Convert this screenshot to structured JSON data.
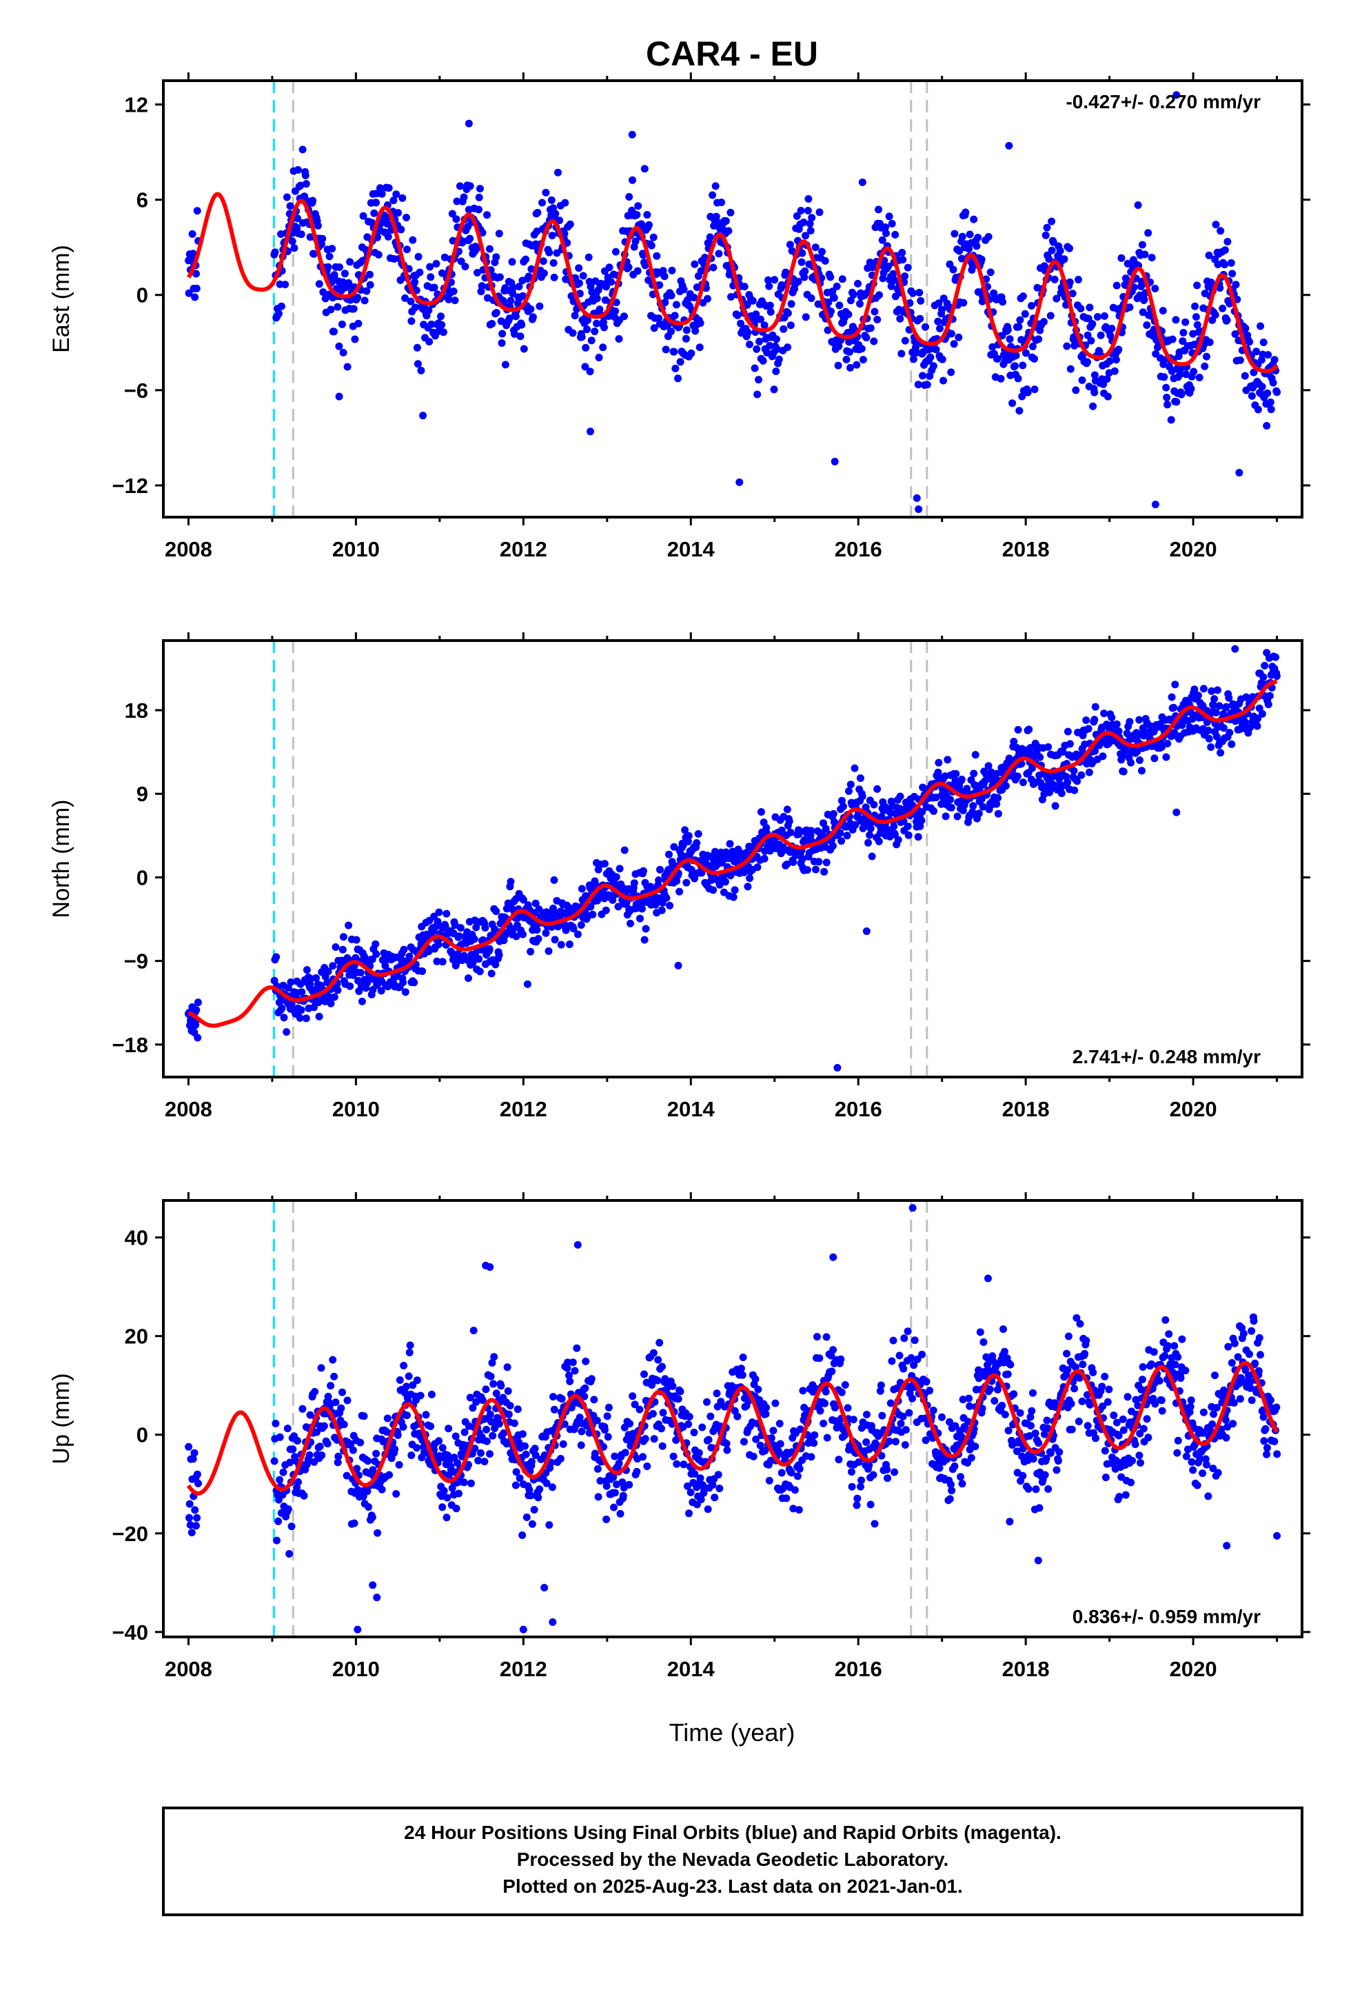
{
  "title": "CAR4 - EU",
  "xlabel": "Time (year)",
  "caption": {
    "line1": "24 Hour Positions Using Final Orbits (blue) and Rapid Orbits (magenta).",
    "line2": "Processed by the Nevada Geodetic Laboratory.",
    "line3": "Plotted on 2025-Aug-23. Last data on 2021-Jan-01."
  },
  "colors": {
    "final_orbits": "#0000ff",
    "model_fit": "#ff0000",
    "antenna_change": "#00e5ff",
    "equipment_change": "#c0c0c0"
  },
  "chart_data": [
    {
      "type": "scatter",
      "component": "east",
      "ylabel": "East (mm)",
      "rate": "-0.427+/- 0.270 mm/yr",
      "rate_position": "top-right",
      "xlim": [
        2007.7,
        2021.3
      ],
      "ylim": [
        -14,
        13.5
      ],
      "xticks": [
        2008,
        2010,
        2012,
        2014,
        2016,
        2018,
        2020
      ],
      "xtick_labels": [
        "2008",
        "2010",
        "2012",
        "2014",
        "2016",
        "2018",
        "2020"
      ],
      "yticks": [
        12,
        6,
        0,
        -6,
        -12
      ],
      "ytick_labels": [
        "12",
        "6",
        "0",
        "−6",
        "−12"
      ],
      "vlines_cyan": [
        2009.02
      ],
      "vlines_gray": [
        2009.25,
        2016.63,
        2016.82
      ],
      "data_span": [
        2008.0,
        2021.0
      ],
      "trend": {
        "value_at_2008": 3.0,
        "slope_mm_per_yr": -0.427
      },
      "seasonal": {
        "annual_amplitude": 2.9,
        "annual_peak_fraction_of_year": 0.35,
        "semiannual_amplitude": 0.6
      },
      "scatter_sd": 1.6,
      "outliers": [
        {
          "x": 2016.72,
          "y": -13.5
        },
        {
          "x": 2016.7,
          "y": -12.8
        },
        {
          "x": 2014.58,
          "y": -11.8
        },
        {
          "x": 2019.55,
          "y": -13.2
        },
        {
          "x": 2012.8,
          "y": -8.6
        },
        {
          "x": 2015.72,
          "y": -10.5
        },
        {
          "x": 2020.55,
          "y": -11.2
        },
        {
          "x": 2017.8,
          "y": 9.4
        },
        {
          "x": 2019.8,
          "y": 12.6
        },
        {
          "x": 2011.35,
          "y": 10.8
        },
        {
          "x": 2013.3,
          "y": 10.1
        },
        {
          "x": 2009.8,
          "y": -6.4
        },
        {
          "x": 2010.8,
          "y": -7.6
        },
        {
          "x": 2016.05,
          "y": 7.1
        }
      ]
    },
    {
      "type": "scatter",
      "component": "north",
      "ylabel": "North (mm)",
      "rate": "2.741+/- 0.248 mm/yr",
      "rate_position": "bottom-right",
      "xlim": [
        2007.7,
        2021.3
      ],
      "ylim": [
        -21.5,
        25.5
      ],
      "xticks": [
        2008,
        2010,
        2012,
        2014,
        2016,
        2018,
        2020
      ],
      "xtick_labels": [
        "2008",
        "2010",
        "2012",
        "2014",
        "2016",
        "2018",
        "2020"
      ],
      "yticks": [
        18,
        9,
        0,
        -9,
        -18
      ],
      "ytick_labels": [
        "18",
        "9",
        "0",
        "−9",
        "−18"
      ],
      "vlines_cyan": [
        2009.02
      ],
      "vlines_gray": [
        2009.25,
        2016.63,
        2016.82
      ],
      "data_span": [
        2008.0,
        2021.0
      ],
      "trend": {
        "value_at_2008": -16.0,
        "slope_mm_per_yr": 2.741
      },
      "seasonal": {
        "annual_amplitude": 1.2,
        "annual_peak_fraction_of_year": 0.95,
        "semiannual_amplitude": 0.3
      },
      "scatter_sd": 1.4,
      "outliers": [
        {
          "x": 2015.75,
          "y": -20.5
        },
        {
          "x": 2016.1,
          "y": -5.8
        },
        {
          "x": 2020.5,
          "y": 24.6
        },
        {
          "x": 2019.8,
          "y": 7.0
        },
        {
          "x": 2013.85,
          "y": -9.5
        },
        {
          "x": 2012.05,
          "y": -11.5
        },
        {
          "x": 2017.4,
          "y": 13.2
        }
      ]
    },
    {
      "type": "scatter",
      "component": "up",
      "ylabel": "Up (mm)",
      "rate": "0.836+/- 0.959 mm/yr",
      "rate_position": "bottom-right",
      "xlim": [
        2007.7,
        2021.3
      ],
      "ylim": [
        -41,
        47.5
      ],
      "xticks": [
        2008,
        2010,
        2012,
        2014,
        2016,
        2018,
        2020
      ],
      "xtick_labels": [
        "2008",
        "2010",
        "2012",
        "2014",
        "2016",
        "2018",
        "2020"
      ],
      "yticks": [
        40,
        20,
        0,
        -20,
        -40
      ],
      "ytick_labels": [
        "40",
        "20",
        "0",
        "−20",
        "−40"
      ],
      "vlines_cyan": [
        2009.02
      ],
      "vlines_gray": [
        2009.25,
        2016.63,
        2016.82
      ],
      "data_span": [
        2008.0,
        2021.0
      ],
      "trend": {
        "value_at_2008": -4.5,
        "slope_mm_per_yr": 0.836
      },
      "seasonal": {
        "annual_amplitude": 8.0,
        "annual_peak_fraction_of_year": 0.62,
        "semiannual_amplitude": 0.5
      },
      "scatter_sd": 5.0,
      "outliers": [
        {
          "x": 2016.65,
          "y": 46.0
        },
        {
          "x": 2012.65,
          "y": 38.5
        },
        {
          "x": 2015.7,
          "y": 36.0
        },
        {
          "x": 2011.55,
          "y": 34.3
        },
        {
          "x": 2011.6,
          "y": 34.0
        },
        {
          "x": 2010.02,
          "y": -39.5
        },
        {
          "x": 2012.0,
          "y": -39.5
        },
        {
          "x": 2012.35,
          "y": -38.0
        },
        {
          "x": 2010.25,
          "y": -33.0
        },
        {
          "x": 2010.2,
          "y": -30.5
        },
        {
          "x": 2017.55,
          "y": 31.7
        },
        {
          "x": 2018.15,
          "y": -25.5
        },
        {
          "x": 2012.25,
          "y": -31.0
        },
        {
          "x": 2020.4,
          "y": -22.5
        },
        {
          "x": 2021.0,
          "y": -20.5
        }
      ]
    }
  ]
}
